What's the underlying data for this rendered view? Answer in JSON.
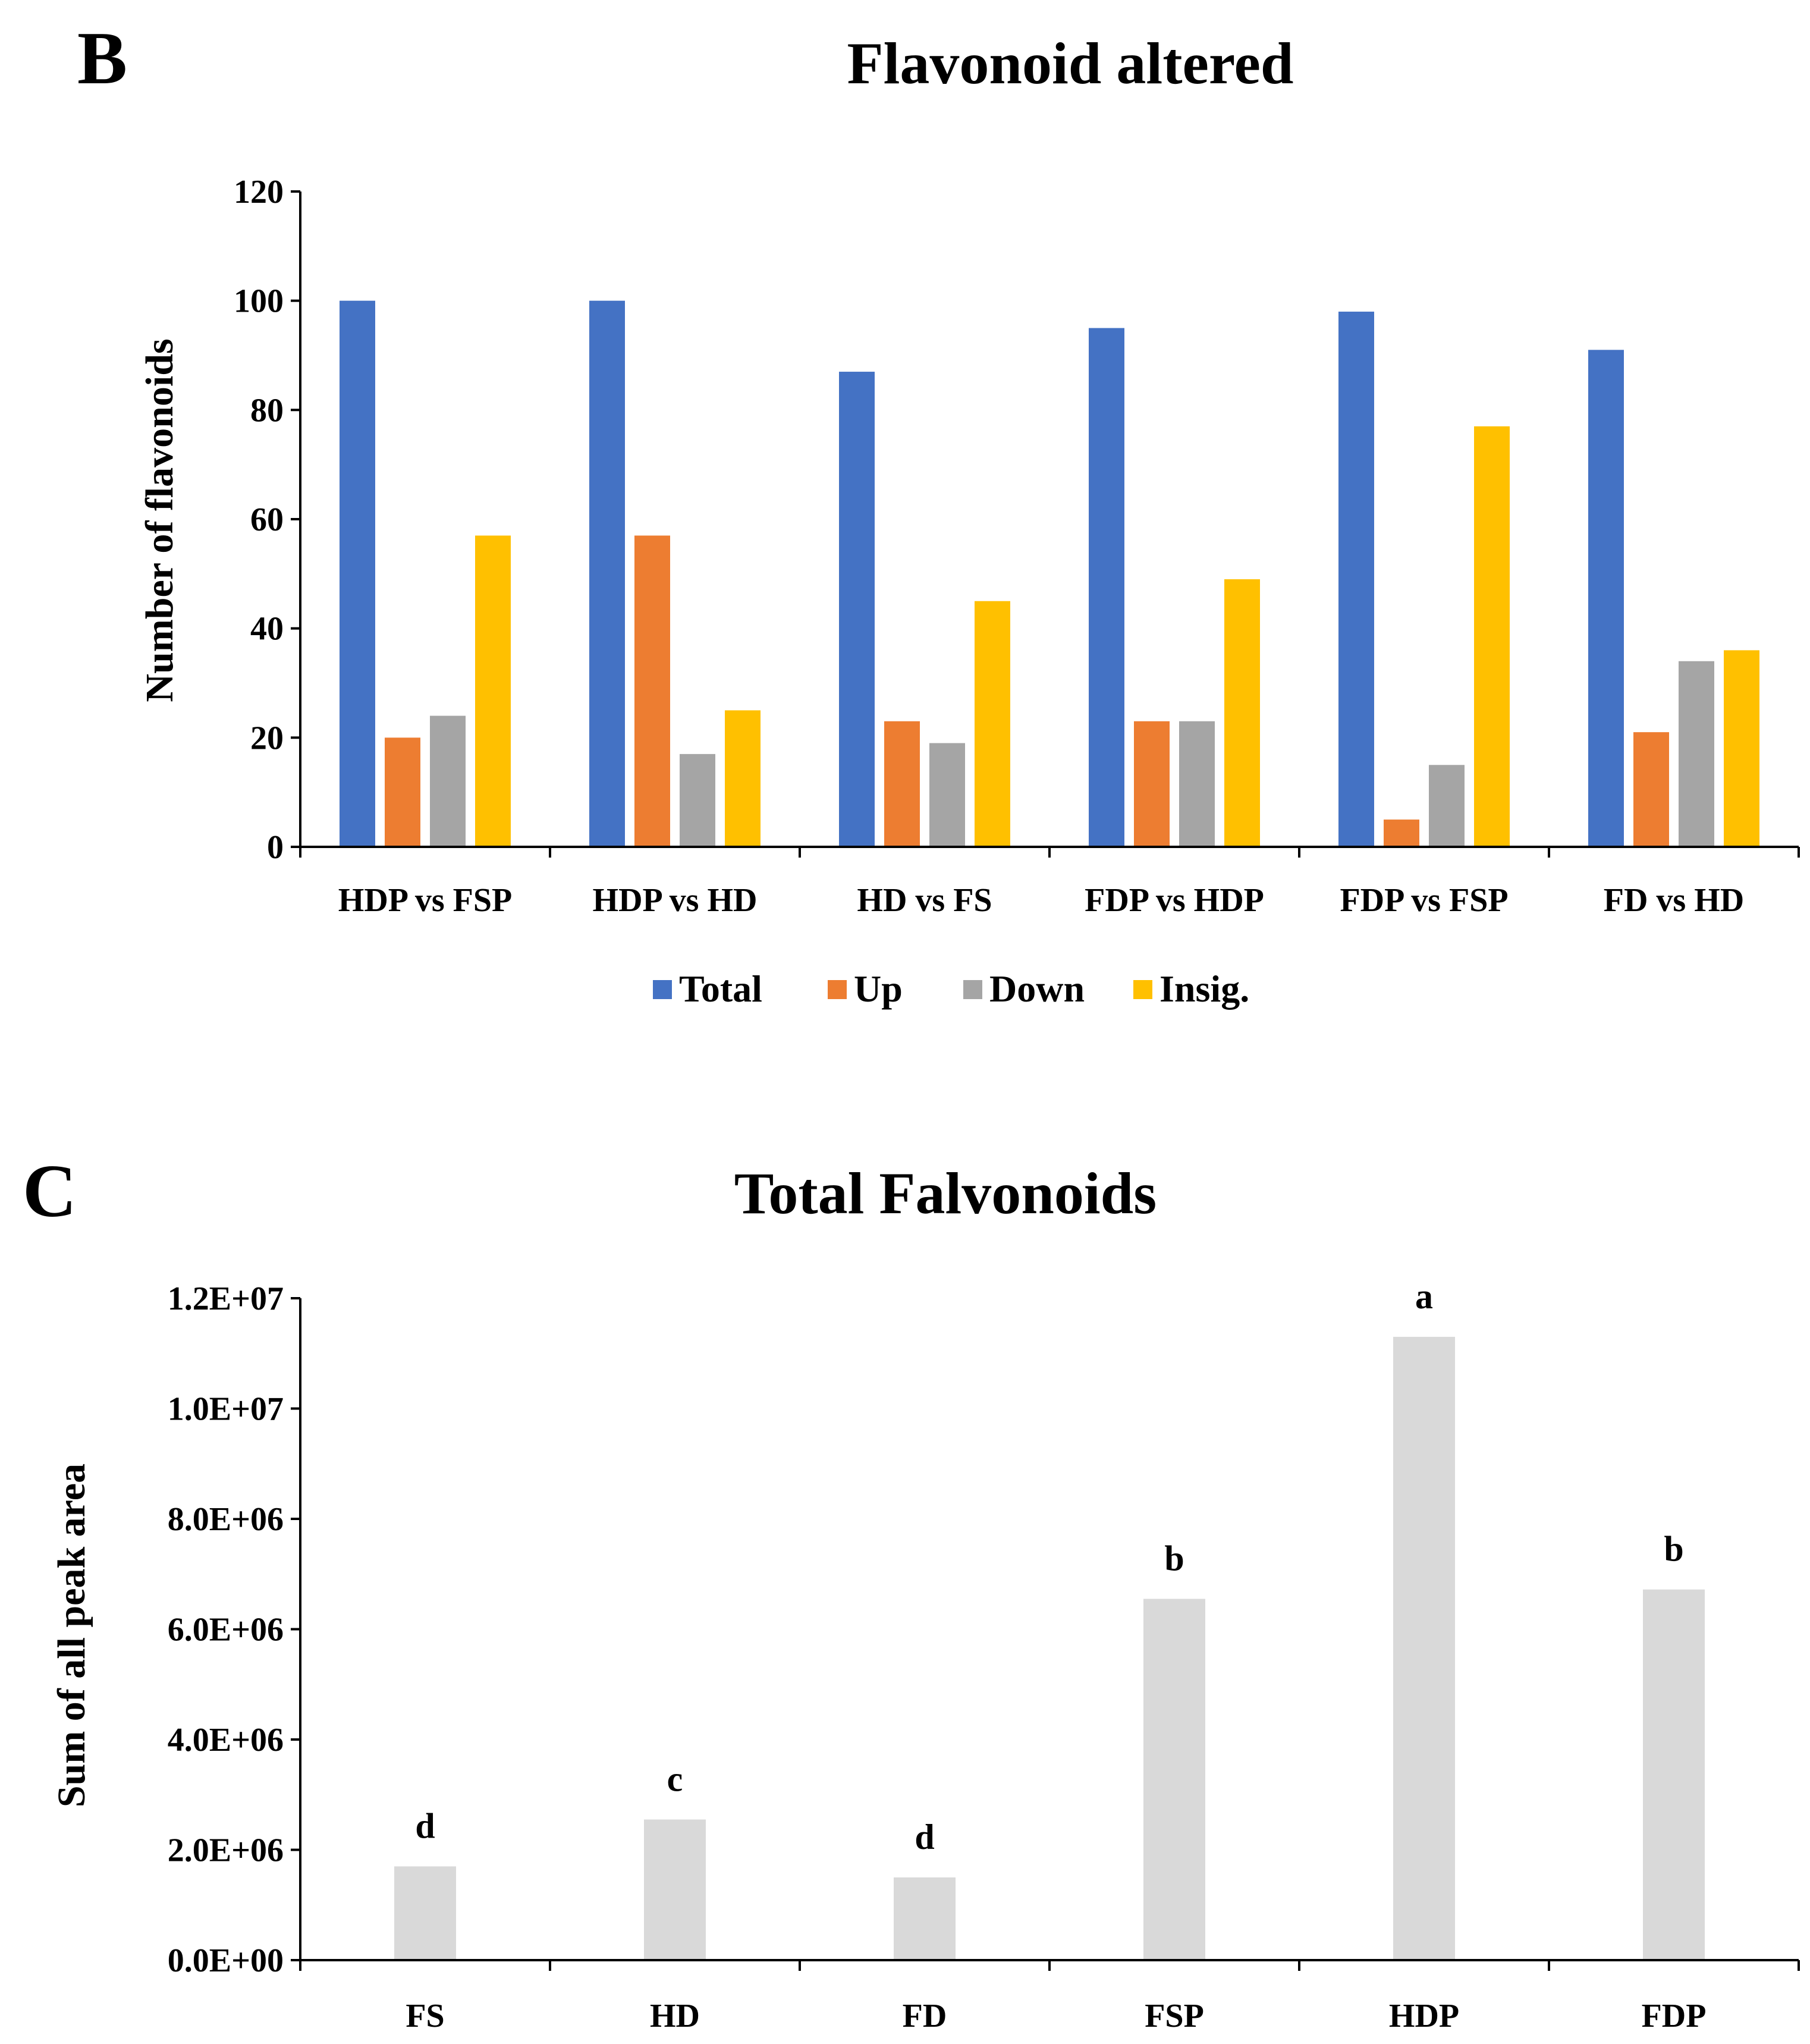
{
  "panels": {
    "b": "B",
    "c": "C"
  },
  "chart_data": [
    {
      "type": "bar",
      "title": "Flavonoid altered",
      "xlabel": "",
      "ylabel": "Number of flavonoids",
      "ylim": [
        0,
        120
      ],
      "yticks": [
        0,
        20,
        40,
        60,
        80,
        100,
        120
      ],
      "categories": [
        "HDP vs FSP",
        "HDP vs HD",
        "HD vs FS",
        "FDP vs HDP",
        "FDP vs FSP",
        "FD vs HD"
      ],
      "series": [
        {
          "name": "Total",
          "color": "#4472C4",
          "values": [
            100,
            100,
            87,
            95,
            98,
            91
          ]
        },
        {
          "name": "Up",
          "color": "#ED7D31",
          "values": [
            20,
            57,
            23,
            23,
            5,
            21
          ]
        },
        {
          "name": "Down",
          "color": "#A5A5A5",
          "values": [
            24,
            17,
            19,
            23,
            15,
            34
          ]
        },
        {
          "name": "Insig.",
          "color": "#FFC000",
          "values": [
            57,
            25,
            45,
            49,
            77,
            36
          ]
        }
      ],
      "legend": "bottom"
    },
    {
      "type": "bar",
      "title": "Total Falvonoids",
      "xlabel": "",
      "ylabel": "Sum of all peak area",
      "ylim": [
        0,
        12000000
      ],
      "yticks": [
        0,
        2000000,
        4000000,
        6000000,
        8000000,
        10000000,
        12000000
      ],
      "ytick_labels": [
        "0.0E+00",
        "2.0E+06",
        "4.0E+06",
        "6.0E+06",
        "8.0E+06",
        "1.0E+07",
        "1.2E+07"
      ],
      "categories": [
        "FS",
        "HD",
        "FD",
        "FSP",
        "HDP",
        "FDP"
      ],
      "values": [
        1700000,
        2550000,
        1500000,
        6550000,
        11300000,
        6720000
      ],
      "bar_color": "#D9D9D9",
      "annotations": [
        "d",
        "c",
        "d",
        "b",
        "a",
        "b"
      ]
    }
  ]
}
